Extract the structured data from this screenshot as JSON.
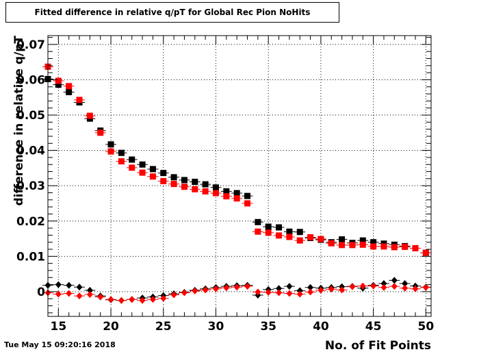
{
  "title": "Fitted difference in relative q/pT for Global Rec Pion NoHits",
  "timestamp": "Tue May 15 09:20:16 2018",
  "chart_data": {
    "type": "scatter",
    "title": "Fitted difference in relative q/pT for Global Rec Pion NoHits",
    "xlabel": "No. of Fit Points",
    "ylabel": "difference in relative q/pT",
    "xlim": [
      14,
      50.5
    ],
    "ylim": [
      -0.007,
      0.0725
    ],
    "x_ticks": [
      15,
      20,
      25,
      30,
      35,
      40,
      45,
      50
    ],
    "x_tick_labels": [
      "15",
      "20",
      "25",
      "30",
      "35",
      "40",
      "45",
      "50"
    ],
    "y_ticks": [
      0,
      0.01,
      0.02,
      0.03,
      0.04,
      0.05,
      0.06,
      0.07
    ],
    "y_tick_labels": [
      "0",
      "0.01",
      "0.02",
      "0.03",
      "0.04",
      "0.05",
      "0.06",
      "0.07"
    ],
    "grid": true,
    "series": [
      {
        "marker": "square",
        "color": "#000000",
        "x": [
          14,
          15,
          16,
          17,
          18,
          19,
          20,
          21,
          22,
          23,
          24,
          25,
          26,
          27,
          28,
          29,
          30,
          31,
          32,
          33,
          34,
          35,
          36,
          37,
          38,
          39,
          40,
          41,
          42,
          43,
          44,
          45,
          46,
          47,
          48,
          49,
          50
        ],
        "y": [
          0.0602,
          0.0586,
          0.0565,
          0.0536,
          0.049,
          0.0456,
          0.0417,
          0.0393,
          0.0374,
          0.036,
          0.0347,
          0.0336,
          0.0324,
          0.0316,
          0.0311,
          0.0304,
          0.0295,
          0.0284,
          0.0279,
          0.0271,
          0.0197,
          0.0184,
          0.0182,
          0.017,
          0.0169,
          0.0152,
          0.0147,
          0.014,
          0.0148,
          0.0138,
          0.0145,
          0.014,
          0.0136,
          0.0133,
          0.0129,
          0.0123,
          0.011
        ]
      },
      {
        "marker": "square",
        "color": "#ff0000",
        "x": [
          14,
          15,
          16,
          17,
          18,
          19,
          20,
          21,
          22,
          23,
          24,
          25,
          26,
          27,
          28,
          29,
          30,
          31,
          32,
          33,
          34,
          35,
          36,
          37,
          38,
          39,
          40,
          41,
          42,
          43,
          44,
          45,
          46,
          47,
          48,
          49,
          50
        ],
        "y": [
          0.0637,
          0.0597,
          0.0582,
          0.0543,
          0.0498,
          0.045,
          0.0397,
          0.0369,
          0.0351,
          0.0337,
          0.0326,
          0.0313,
          0.0305,
          0.0297,
          0.029,
          0.0284,
          0.0279,
          0.027,
          0.0264,
          0.025,
          0.017,
          0.0167,
          0.0159,
          0.0155,
          0.0145,
          0.0154,
          0.0149,
          0.0137,
          0.0132,
          0.0132,
          0.0133,
          0.0128,
          0.0128,
          0.0126,
          0.0127,
          0.0123,
          0.011
        ]
      },
      {
        "marker": "diamond",
        "color": "#000000",
        "x": [
          14,
          15,
          16,
          17,
          18,
          19,
          20,
          21,
          22,
          23,
          24,
          25,
          26,
          27,
          28,
          29,
          30,
          31,
          32,
          33,
          34,
          35,
          36,
          37,
          38,
          39,
          40,
          41,
          42,
          43,
          44,
          45,
          46,
          47,
          48,
          49,
          50
        ],
        "y": [
          0.0018,
          0.002,
          0.0018,
          0.0013,
          0.0004,
          -0.0012,
          -0.0023,
          -0.0025,
          -0.0022,
          -0.0018,
          -0.0015,
          -0.0011,
          -0.0006,
          -0.0002,
          0.0004,
          0.0008,
          0.0012,
          0.0015,
          0.0017,
          0.0018,
          -0.001,
          0.0006,
          0.0009,
          0.0015,
          0.0003,
          0.0012,
          0.001,
          0.0012,
          0.0014,
          0.0015,
          0.001,
          0.0018,
          0.0023,
          0.0032,
          0.0023,
          0.0016,
          0.0013
        ]
      },
      {
        "marker": "diamond",
        "color": "#ff0000",
        "x": [
          14,
          15,
          16,
          17,
          18,
          19,
          20,
          21,
          22,
          23,
          24,
          25,
          26,
          27,
          28,
          29,
          30,
          31,
          32,
          33,
          34,
          35,
          36,
          37,
          38,
          39,
          40,
          41,
          42,
          43,
          44,
          45,
          46,
          47,
          48,
          49,
          50
        ],
        "y": [
          -0.0003,
          -0.0007,
          -0.0005,
          -0.0012,
          -0.0008,
          -0.0015,
          -0.0022,
          -0.0025,
          -0.0022,
          -0.0025,
          -0.0022,
          -0.0019,
          -0.0009,
          -0.0003,
          0.0002,
          0.0005,
          0.0008,
          0.0011,
          0.0013,
          0.0015,
          -0.0001,
          -0.0002,
          -0.0003,
          -0.0005,
          -0.0007,
          -0.0001,
          0.0004,
          0.0007,
          0.0005,
          0.0014,
          0.0016,
          0.0016,
          0.0012,
          0.0015,
          0.001,
          0.0008,
          0.0012
        ]
      }
    ]
  }
}
